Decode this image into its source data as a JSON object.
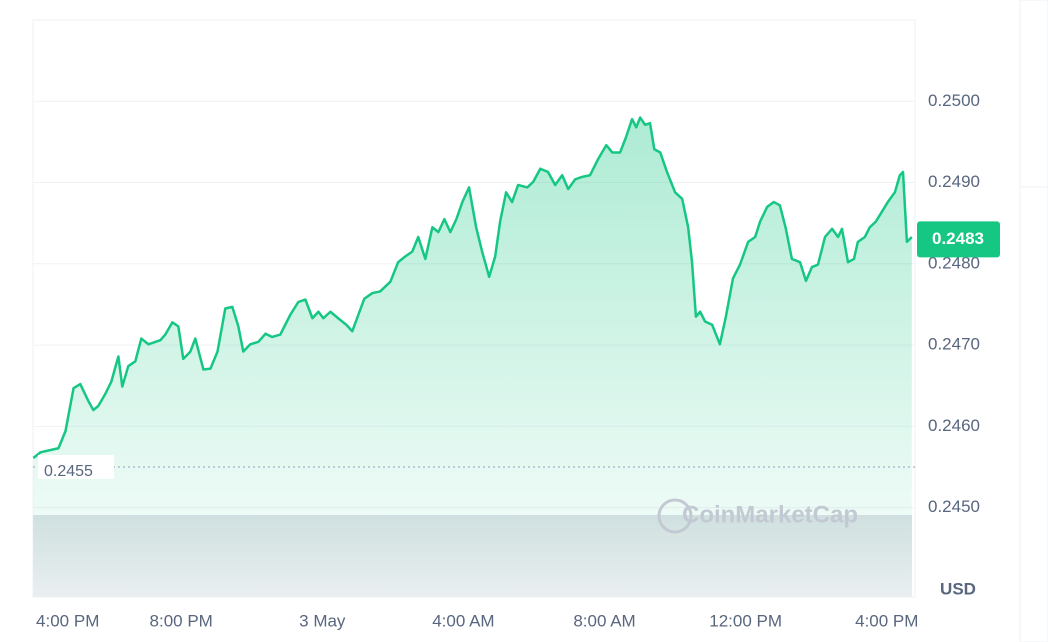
{
  "chart_data": {
    "type": "line",
    "color": "#16c784",
    "grid": true,
    "currency": "USD",
    "watermark": "CoinMarketCap",
    "reference_value": 0.2455,
    "last_price": 0.2483,
    "xlim": [
      -8.2,
      16.8
    ],
    "xticks": [
      {
        "value": -8,
        "label": "4:00 PM"
      },
      {
        "value": -4,
        "label": "8:00 PM"
      },
      {
        "value": 0,
        "label": "3 May"
      },
      {
        "value": 4,
        "label": "4:00 AM"
      },
      {
        "value": 8,
        "label": "8:00 AM"
      },
      {
        "value": 12,
        "label": "12:00 PM"
      },
      {
        "value": 16,
        "label": "4:00 PM"
      }
    ],
    "ylim": [
      0.2439,
      0.251
    ],
    "yticks": [
      {
        "value": 0.245,
        "label": "0.2450"
      },
      {
        "value": 0.246,
        "label": "0.2460"
      },
      {
        "value": 0.247,
        "label": "0.2470"
      },
      {
        "value": 0.248,
        "label": "0.2480"
      },
      {
        "value": 0.249,
        "label": "0.2490"
      },
      {
        "value": 0.25,
        "label": "0.2500"
      }
    ],
    "x": [
      -8.19,
      -7.99,
      -7.48,
      -7.28,
      -7.05,
      -6.86,
      -6.63,
      -6.49,
      -6.35,
      -6.15,
      -5.98,
      -5.78,
      -5.67,
      -5.5,
      -5.3,
      -5.13,
      -4.93,
      -4.59,
      -4.45,
      -4.25,
      -4.08,
      -3.94,
      -3.74,
      -3.6,
      -3.37,
      -3.17,
      -2.97,
      -2.75,
      -2.55,
      -2.38,
      -2.24,
      -2.04,
      -1.81,
      -1.61,
      -1.42,
      -1.19,
      -0.91,
      -0.68,
      -0.48,
      -0.28,
      -0.11,
      0.03,
      0.23,
      0.45,
      0.68,
      0.85,
      1.02,
      1.19,
      1.42,
      1.64,
      1.93,
      2.15,
      2.35,
      2.55,
      2.72,
      2.92,
      3.12,
      3.29,
      3.46,
      3.63,
      3.8,
      3.97,
      4.16,
      4.36,
      4.53,
      4.73,
      4.9,
      5.04,
      5.21,
      5.38,
      5.55,
      5.81,
      5.98,
      6.18,
      6.4,
      6.6,
      6.8,
      6.97,
      7.17,
      7.37,
      7.59,
      7.82,
      8.05,
      8.22,
      8.44,
      8.61,
      8.78,
      8.9,
      9.01,
      9.15,
      9.29,
      9.41,
      9.58,
      9.77,
      10.0,
      10.2,
      10.37,
      10.48,
      10.59,
      10.71,
      10.85,
      11.05,
      11.27,
      11.44,
      11.64,
      11.84,
      12.07,
      12.27,
      12.41,
      12.61,
      12.8,
      12.97,
      13.14,
      13.31,
      13.54,
      13.71,
      13.88,
      14.05,
      14.25,
      14.45,
      14.62,
      14.73,
      14.9,
      15.07,
      15.18,
      15.38,
      15.52,
      15.69,
      15.86,
      16.03,
      16.23,
      16.37,
      16.46,
      16.57,
      16.71
    ],
    "values": [
      0.24561,
      0.24568,
      0.24573,
      0.24594,
      0.24647,
      0.24652,
      0.24631,
      0.2462,
      0.24625,
      0.2464,
      0.24655,
      0.24686,
      0.24649,
      0.24674,
      0.2468,
      0.24708,
      0.24701,
      0.24706,
      0.24713,
      0.24728,
      0.24723,
      0.24683,
      0.24692,
      0.24708,
      0.2467,
      0.24671,
      0.24692,
      0.24745,
      0.24747,
      0.24723,
      0.24692,
      0.24701,
      0.24704,
      0.24714,
      0.2471,
      0.24713,
      0.24737,
      0.24753,
      0.24756,
      0.24733,
      0.24741,
      0.24733,
      0.24741,
      0.24733,
      0.24725,
      0.24717,
      0.24737,
      0.24757,
      0.24764,
      0.24766,
      0.24778,
      0.24802,
      0.24809,
      0.24815,
      0.24833,
      0.24806,
      0.24845,
      0.24839,
      0.24855,
      0.24839,
      0.24855,
      0.24876,
      0.24894,
      0.24845,
      0.24815,
      0.24784,
      0.24809,
      0.24852,
      0.24888,
      0.24876,
      0.24897,
      0.24894,
      0.24901,
      0.24917,
      0.24913,
      0.24897,
      0.24909,
      0.24892,
      0.24904,
      0.24907,
      0.24909,
      0.24929,
      0.24946,
      0.24937,
      0.24937,
      0.24956,
      0.24978,
      0.24968,
      0.2498,
      0.24971,
      0.24973,
      0.24941,
      0.24937,
      0.24913,
      0.24888,
      0.2488,
      0.24845,
      0.24802,
      0.24735,
      0.24741,
      0.24729,
      0.24725,
      0.24701,
      0.24735,
      0.24782,
      0.24799,
      0.24827,
      0.24833,
      0.24852,
      0.2487,
      0.24876,
      0.24872,
      0.24843,
      0.24806,
      0.24802,
      0.24779,
      0.24796,
      0.24799,
      0.24833,
      0.24843,
      0.24833,
      0.24843,
      0.24802,
      0.24806,
      0.24827,
      0.24833,
      0.24845,
      0.24852,
      0.24864,
      0.24876,
      0.24888,
      0.24909,
      0.24913,
      0.24827,
      0.24833
    ]
  }
}
